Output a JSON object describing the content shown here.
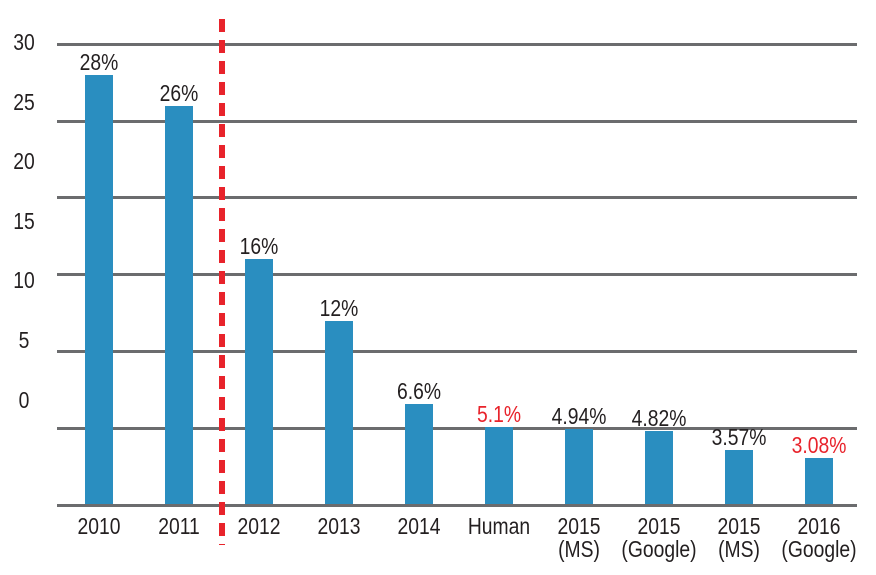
{
  "chart_data": {
    "type": "bar",
    "categories": [
      "2010",
      "2011",
      "2012",
      "2013",
      "2014",
      "Human",
      "2015 (MS)",
      "2015 (Google)",
      "2015 (MS)",
      "2016 (Google)"
    ],
    "x_tick_lines": [
      [
        "2010"
      ],
      [
        "2011"
      ],
      [
        "2012"
      ],
      [
        "2013"
      ],
      [
        "2014"
      ],
      [
        "Human"
      ],
      [
        "2015",
        "(MS)"
      ],
      [
        "2015",
        "(Google)"
      ],
      [
        "2015",
        "(MS)"
      ],
      [
        "2016",
        "(Google)"
      ]
    ],
    "values": [
      28,
      26,
      16,
      12,
      6.6,
      5.1,
      4.94,
      4.82,
      3.57,
      3.08
    ],
    "bar_labels": [
      "28%",
      "26%",
      "16%",
      "12%",
      "6.6%",
      "5.1%",
      "4.94%",
      "4.82%",
      "3.57%",
      "3.08%"
    ],
    "bar_label_colors": [
      "dark",
      "dark",
      "dark",
      "dark",
      "dark",
      "red",
      "dark",
      "dark",
      "dark",
      "red"
    ],
    "y_ticks": [
      "30",
      "25",
      "20",
      "15",
      "10",
      "5",
      "0"
    ],
    "ylim": [
      0,
      30
    ],
    "xlabel": "",
    "ylabel": "",
    "grid": "horizontal",
    "legend": "none",
    "annotations": [
      {
        "type": "vertical_dashed_line",
        "between": [
          "2011",
          "2012"
        ],
        "color": "#e8232b"
      }
    ]
  },
  "colors": {
    "bar": "#2a8ec0",
    "red": "#e8232b",
    "grid": "#6b6c6e",
    "text": "#231f20",
    "background": "#ffffff"
  }
}
